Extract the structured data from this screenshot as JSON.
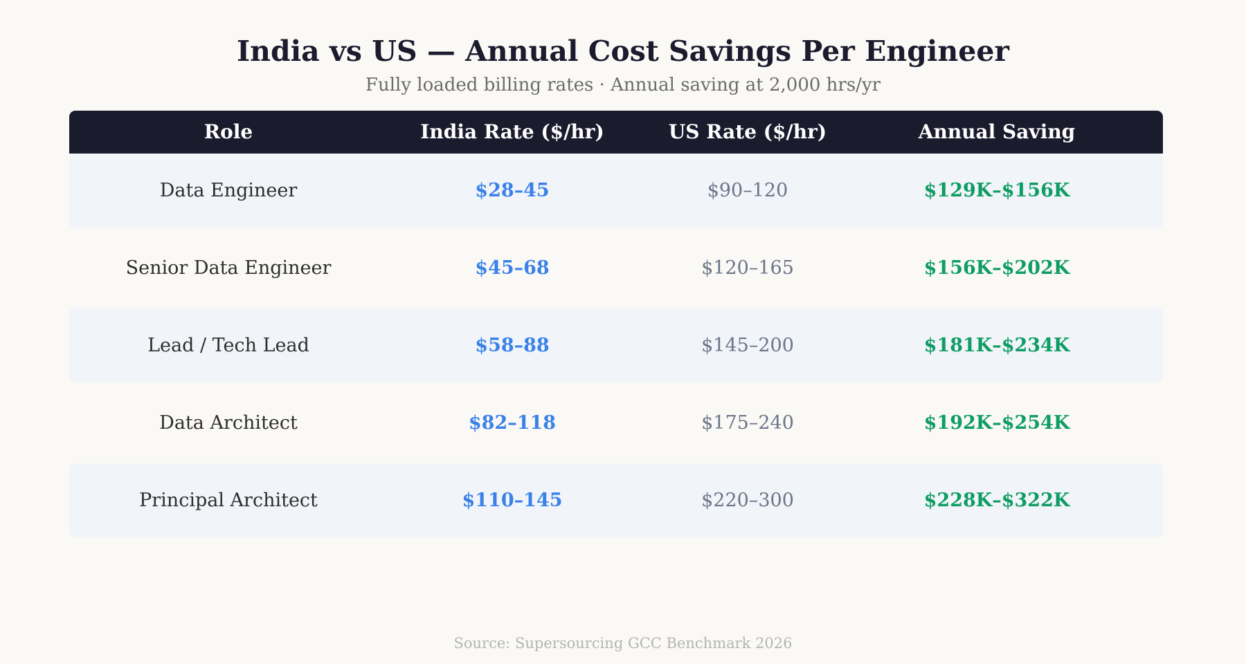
{
  "title": "India vs US — Annual Cost Savings Per Engineer",
  "subtitle": "Fully loaded billing rates · Annual saving at 2,000 hrs/yr",
  "source": "Source: Supersourcing GCC Benchmark 2026",
  "colors": {
    "header_bg": "#1b1b2e",
    "india_rate": "#3b82e8",
    "us_rate": "#6b7588",
    "saving": "#0f9d63",
    "row_shade": "#f1f4f9"
  },
  "chart_data": {
    "type": "table",
    "columns": [
      "Role",
      "India Rate ($/hr)",
      "US Rate ($/hr)",
      "Annual Saving"
    ],
    "rows": [
      {
        "role": "Data Engineer",
        "india": "$28–45",
        "us": "$90–120",
        "saving": "$129K–$156K"
      },
      {
        "role": "Senior Data Engineer",
        "india": "$45–68",
        "us": "$120–165",
        "saving": "$156K–$202K"
      },
      {
        "role": "Lead / Tech Lead",
        "india": "$58–88",
        "us": "$145–200",
        "saving": "$181K–$234K"
      },
      {
        "role": "Data Architect",
        "india": "$82–118",
        "us": "$175–240",
        "saving": "$192K–$254K"
      },
      {
        "role": "Principal Architect",
        "india": "$110–145",
        "us": "$220–300",
        "saving": "$228K–$322K"
      }
    ]
  }
}
